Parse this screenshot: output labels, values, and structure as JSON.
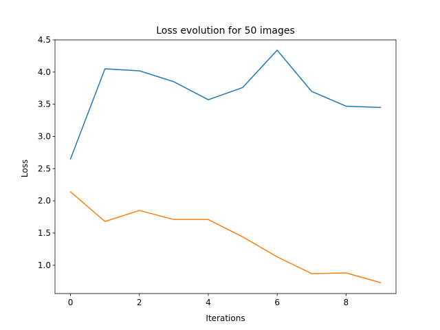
{
  "chart_data": {
    "type": "line",
    "title": "Loss evolution for 50 images",
    "xlabel": "Iterations",
    "ylabel": "Loss",
    "xlim": [
      -0.45,
      9.45
    ],
    "ylim": [
      0.56,
      4.5
    ],
    "xticks": [
      0,
      2,
      4,
      6,
      8
    ],
    "yticks": [
      1.0,
      1.5,
      2.0,
      2.5,
      3.0,
      3.5,
      4.0,
      4.5
    ],
    "ytick_labels": [
      "1.0",
      "1.5",
      "2.0",
      "2.5",
      "3.0",
      "3.5",
      "4.0",
      "4.5"
    ],
    "grid": false,
    "legend": false,
    "x": [
      0,
      1,
      2,
      3,
      4,
      5,
      6,
      7,
      8,
      9
    ],
    "series": [
      {
        "color": "#1f77b4",
        "values": [
          2.65,
          4.05,
          4.02,
          3.85,
          3.57,
          3.76,
          4.34,
          3.7,
          3.47,
          3.45
        ]
      },
      {
        "color": "#ff7f0e",
        "values": [
          2.14,
          1.68,
          1.85,
          1.71,
          1.71,
          1.44,
          1.13,
          0.87,
          0.88,
          0.73
        ]
      }
    ]
  }
}
